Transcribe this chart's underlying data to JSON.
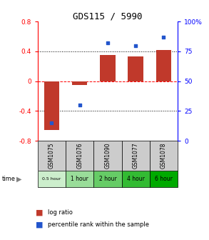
{
  "title": "GDS115 / 5990",
  "samples": [
    "GSM1075",
    "GSM1076",
    "GSM1090",
    "GSM1077",
    "GSM1078"
  ],
  "time_labels": [
    "0.5 hour",
    "1 hour",
    "2 hour",
    "4 hour",
    "6 hour"
  ],
  "log_ratios": [
    -0.65,
    -0.05,
    0.35,
    0.33,
    0.42
  ],
  "percentile_ranks": [
    15,
    30,
    82,
    80,
    87
  ],
  "bar_color": "#c0392b",
  "dot_color": "#2255cc",
  "ylim_left": [
    -0.8,
    0.8
  ],
  "ylim_right": [
    0,
    100
  ],
  "yticks_left": [
    -0.8,
    -0.4,
    0.0,
    0.4,
    0.8
  ],
  "yticks_right": [
    0,
    25,
    50,
    75,
    100
  ],
  "ytick_labels_left": [
    "-0.8",
    "-0.4",
    "0",
    "0.4",
    "0.8"
  ],
  "ytick_labels_right": [
    "0",
    "25",
    "50",
    "75",
    "100%"
  ],
  "time_colors": [
    "#cceecc",
    "#99dd99",
    "#66cc66",
    "#33bb33",
    "#00aa00"
  ],
  "sample_bg_color": "#cccccc",
  "legend_log_ratio": "log ratio",
  "legend_percentile": "percentile rank within the sample",
  "bar_width": 0.55,
  "fig_width": 2.93,
  "fig_height": 3.36,
  "dpi": 100
}
